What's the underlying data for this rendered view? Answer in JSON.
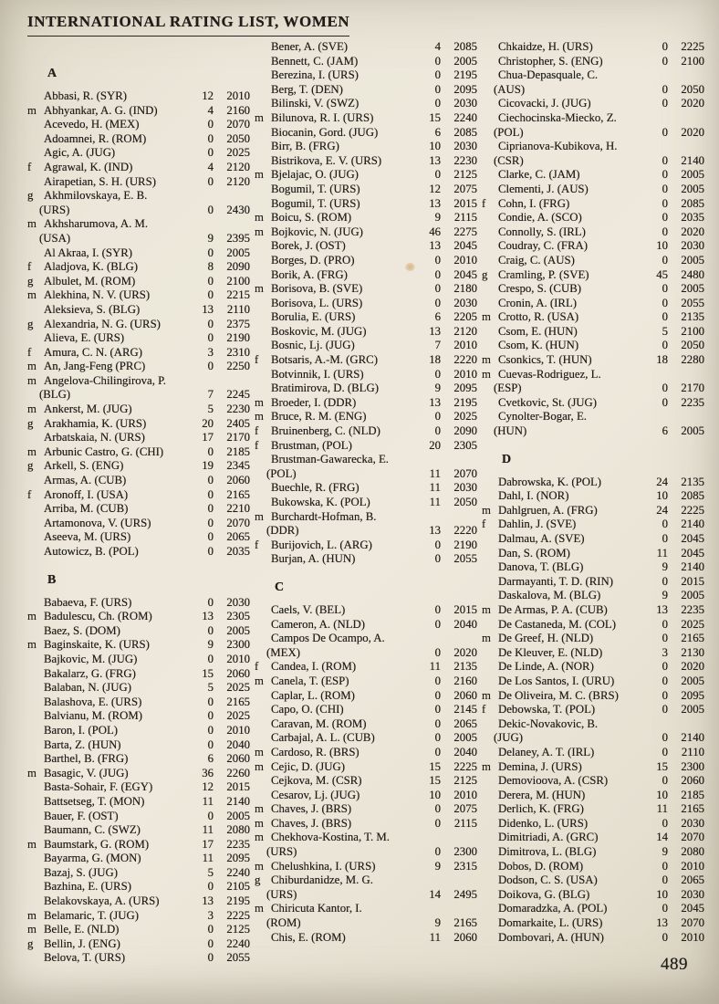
{
  "page": {
    "title": "INTERNATIONAL RATING LIST, WOMEN",
    "page_number": "489"
  },
  "columns": [
    [
      {
        "h": "A"
      },
      {
        "f": "",
        "n": "Abbasi, R. (SYR)",
        "g": "12",
        "r": "2010"
      },
      {
        "f": "m",
        "n": "Abhyankar, A. G. (IND)",
        "g": "4",
        "r": "2160"
      },
      {
        "f": "",
        "n": "Acevedo, H. (MEX)",
        "g": "0",
        "r": "2070"
      },
      {
        "f": "",
        "n": "Adoamnei, R. (ROM)",
        "g": "0",
        "r": "2050"
      },
      {
        "f": "",
        "n": "Agic, A. (JUG)",
        "g": "0",
        "r": "2025"
      },
      {
        "f": "f",
        "n": "Agrawal, K. (IND)",
        "g": "4",
        "r": "2120"
      },
      {
        "f": "",
        "n": "Airapetian, S. H. (URS)",
        "g": "0",
        "r": "2120"
      },
      {
        "f": "g",
        "n": "Akhmilovskaya, E. B.",
        "n2": "(URS)",
        "g": "0",
        "r": "2430"
      },
      {
        "f": "m",
        "n": "Akhsharumova, A. M.",
        "n2": "(USA)",
        "g": "9",
        "r": "2395"
      },
      {
        "f": "",
        "n": "Al Akraa, I. (SYR)",
        "g": "0",
        "r": "2005"
      },
      {
        "f": "f",
        "n": "Aladjova, K. (BLG)",
        "g": "8",
        "r": "2090"
      },
      {
        "f": "g",
        "n": "Albulet, M. (ROM)",
        "g": "0",
        "r": "2100"
      },
      {
        "f": "m",
        "n": "Alekhina, N. V. (URS)",
        "g": "0",
        "r": "2215"
      },
      {
        "f": "",
        "n": "Aleksieva, S. (BLG)",
        "g": "13",
        "r": "2110"
      },
      {
        "f": "g",
        "n": "Alexandria, N. G. (URS)",
        "g": "0",
        "r": "2375"
      },
      {
        "f": "",
        "n": "Alieva, E. (URS)",
        "g": "0",
        "r": "2190"
      },
      {
        "f": "f",
        "n": "Amura, C. N. (ARG)",
        "g": "3",
        "r": "2310"
      },
      {
        "f": "m",
        "n": "An, Jang-Feng (PRC)",
        "g": "0",
        "r": "2250"
      },
      {
        "f": "m",
        "n": "Angelova-Chilingirova, P.",
        "n2": "(BLG)",
        "g": "7",
        "r": "2245"
      },
      {
        "f": "m",
        "n": "Ankerst, M. (JUG)",
        "g": "5",
        "r": "2230"
      },
      {
        "f": "g",
        "n": "Arakhamia, K. (URS)",
        "g": "20",
        "r": "2405"
      },
      {
        "f": "",
        "n": "Arbatskaia, N. (URS)",
        "g": "17",
        "r": "2170"
      },
      {
        "f": "m",
        "n": "Arbunic Castro, G. (CHI)",
        "g": "0",
        "r": "2185"
      },
      {
        "f": "g",
        "n": "Arkell, S. (ENG)",
        "g": "19",
        "r": "2345"
      },
      {
        "f": "",
        "n": "Armas, A. (CUB)",
        "g": "0",
        "r": "2060"
      },
      {
        "f": "f",
        "n": "Aronoff, I. (USA)",
        "g": "0",
        "r": "2165"
      },
      {
        "f": "",
        "n": "Arriba, M. (CUB)",
        "g": "0",
        "r": "2210"
      },
      {
        "f": "",
        "n": "Artamonova, V. (URS)",
        "g": "0",
        "r": "2070"
      },
      {
        "f": "",
        "n": "Aseeva, M. (URS)",
        "g": "0",
        "r": "2065"
      },
      {
        "f": "",
        "n": "Autowicz, B. (POL)",
        "g": "0",
        "r": "2035"
      },
      {
        "h": "B"
      },
      {
        "f": "",
        "n": "Babaeva, F. (URS)",
        "g": "0",
        "r": "2030"
      },
      {
        "f": "m",
        "n": "Badulescu, Ch. (ROM)",
        "g": "13",
        "r": "2305"
      },
      {
        "f": "",
        "n": "Baez, S. (DOM)",
        "g": "0",
        "r": "2005"
      },
      {
        "f": "m",
        "n": "Baginskaite, K. (URS)",
        "g": "9",
        "r": "2300"
      },
      {
        "f": "",
        "n": "Bajkovic, M. (JUG)",
        "g": "0",
        "r": "2010"
      },
      {
        "f": "",
        "n": "Bakalarz, G. (FRG)",
        "g": "15",
        "r": "2060"
      },
      {
        "f": "",
        "n": "Balaban, N. (JUG)",
        "g": "5",
        "r": "2025"
      },
      {
        "f": "",
        "n": "Balashova, E. (URS)",
        "g": "0",
        "r": "2165"
      },
      {
        "f": "",
        "n": "Balvianu, M. (ROM)",
        "g": "0",
        "r": "2025"
      },
      {
        "f": "",
        "n": "Baron, I. (POL)",
        "g": "0",
        "r": "2010"
      },
      {
        "f": "",
        "n": "Barta, Z. (HUN)",
        "g": "0",
        "r": "2040"
      },
      {
        "f": "",
        "n": "Barthel, B. (FRG)",
        "g": "6",
        "r": "2060"
      },
      {
        "f": "m",
        "n": "Basagic, V. (JUG)",
        "g": "36",
        "r": "2260"
      },
      {
        "f": "",
        "n": "Basta-Sohair, F. (EGY)",
        "g": "12",
        "r": "2015"
      },
      {
        "f": "",
        "n": "Battsetseg, T. (MON)",
        "g": "11",
        "r": "2140"
      },
      {
        "f": "",
        "n": "Bauer, F. (OST)",
        "g": "0",
        "r": "2005"
      },
      {
        "f": "",
        "n": "Baumann, C. (SWZ)",
        "g": "11",
        "r": "2080"
      },
      {
        "f": "m",
        "n": "Baumstark, G. (ROM)",
        "g": "17",
        "r": "2235"
      },
      {
        "f": "",
        "n": "Bayarma, G. (MON)",
        "g": "11",
        "r": "2095"
      },
      {
        "f": "",
        "n": "Bazaj, S. (JUG)",
        "g": "5",
        "r": "2240"
      },
      {
        "f": "",
        "n": "Bazhina, E. (URS)",
        "g": "0",
        "r": "2105"
      },
      {
        "f": "",
        "n": "Belakovskaya, A. (URS)",
        "g": "13",
        "r": "2195"
      },
      {
        "f": "m",
        "n": "Belamaric, T. (JUG)",
        "g": "3",
        "r": "2225"
      },
      {
        "f": "m",
        "n": "Belle, E. (NLD)",
        "g": "0",
        "r": "2125"
      },
      {
        "f": "g",
        "n": "Bellin, J. (ENG)",
        "g": "0",
        "r": "2240"
      },
      {
        "f": "",
        "n": "Belova, T. (URS)",
        "g": "0",
        "r": "2055"
      }
    ],
    [
      {
        "f": "",
        "n": "Bener, A. (SVE)",
        "g": "4",
        "r": "2085"
      },
      {
        "f": "",
        "n": "Bennett, C. (JAM)",
        "g": "0",
        "r": "2005"
      },
      {
        "f": "",
        "n": "Berezina, I. (URS)",
        "g": "0",
        "r": "2195"
      },
      {
        "f": "",
        "n": "Berg, T. (DEN)",
        "g": "0",
        "r": "2095"
      },
      {
        "f": "",
        "n": "Bilinski, V. (SWZ)",
        "g": "0",
        "r": "2030"
      },
      {
        "f": "m",
        "n": "Bilunova, R. I. (URS)",
        "g": "15",
        "r": "2240"
      },
      {
        "f": "",
        "n": "Biocanin, Gord. (JUG)",
        "g": "6",
        "r": "2085"
      },
      {
        "f": "",
        "n": "Birr, B. (FRG)",
        "g": "10",
        "r": "2030"
      },
      {
        "f": "",
        "n": "Bistrikova, E. V. (URS)",
        "g": "13",
        "r": "2230"
      },
      {
        "f": "m",
        "n": "Bjelajac, O. (JUG)",
        "g": "0",
        "r": "2125"
      },
      {
        "f": "",
        "n": "Bogumil, T. (URS)",
        "g": "12",
        "r": "2075"
      },
      {
        "f": "",
        "n": "Bogumil, T. (URS)",
        "g": "13",
        "r": "2015"
      },
      {
        "f": "m",
        "n": "Boicu, S. (ROM)",
        "g": "9",
        "r": "2115"
      },
      {
        "f": "m",
        "n": "Bojkovic, N. (JUG)",
        "g": "46",
        "r": "2275"
      },
      {
        "f": "",
        "n": "Borek, J. (OST)",
        "g": "13",
        "r": "2045"
      },
      {
        "f": "",
        "n": "Borges, D. (PRO)",
        "g": "0",
        "r": "2010"
      },
      {
        "f": "",
        "n": "Borik, A. (FRG)",
        "g": "0",
        "r": "2045"
      },
      {
        "f": "m",
        "n": "Borisova, B. (SVE)",
        "g": "0",
        "r": "2180"
      },
      {
        "f": "",
        "n": "Borisova, L. (URS)",
        "g": "0",
        "r": "2030"
      },
      {
        "f": "",
        "n": "Borulia, E. (URS)",
        "g": "6",
        "r": "2205"
      },
      {
        "f": "",
        "n": "Boskovic, M. (JUG)",
        "g": "13",
        "r": "2120"
      },
      {
        "f": "",
        "n": "Bosnic, Lj. (JUG)",
        "g": "7",
        "r": "2010"
      },
      {
        "f": "f",
        "n": "Botsaris, A.-M. (GRC)",
        "g": "18",
        "r": "2220"
      },
      {
        "f": "",
        "n": "Botvinnik, I. (URS)",
        "g": "0",
        "r": "2010"
      },
      {
        "f": "",
        "n": "Bratimirova, D. (BLG)",
        "g": "9",
        "r": "2095"
      },
      {
        "f": "m",
        "n": "Broeder, I. (DDR)",
        "g": "13",
        "r": "2195"
      },
      {
        "f": "m",
        "n": "Bruce, R. M. (ENG)",
        "g": "0",
        "r": "2025"
      },
      {
        "f": "f",
        "n": "Bruinenberg, C. (NLD)",
        "g": "0",
        "r": "2090"
      },
      {
        "f": "f",
        "n": "Brustman, (POL)",
        "g": "20",
        "r": "2305"
      },
      {
        "f": "",
        "n": "Brustman-Gawarecka, E.",
        "n2": "(POL)",
        "g": "11",
        "r": "2070"
      },
      {
        "f": "",
        "n": "Buechle, R. (FRG)",
        "g": "11",
        "r": "2030"
      },
      {
        "f": "",
        "n": "Bukowska, K. (POL)",
        "g": "11",
        "r": "2050"
      },
      {
        "f": "m",
        "n": "Burchardt-Hofman, B.",
        "n2": "(DDR)",
        "g": "13",
        "r": "2220"
      },
      {
        "f": "f",
        "n": "Burijovich, L. (ARG)",
        "g": "0",
        "r": "2190"
      },
      {
        "f": "",
        "n": "Burjan, A. (HUN)",
        "g": "0",
        "r": "2055"
      },
      {
        "h": "C"
      },
      {
        "f": "",
        "n": "Caels, V. (BEL)",
        "g": "0",
        "r": "2015"
      },
      {
        "f": "",
        "n": "Cameron, A. (NLD)",
        "g": "0",
        "r": "2040"
      },
      {
        "f": "",
        "n": "Campos De Ocampo, A.",
        "n2": "(MEX)",
        "g": "0",
        "r": "2020"
      },
      {
        "f": "f",
        "n": "Candea, I. (ROM)",
        "g": "11",
        "r": "2135"
      },
      {
        "f": "m",
        "n": "Canela, T. (ESP)",
        "g": "0",
        "r": "2160"
      },
      {
        "f": "",
        "n": "Caplar, L. (ROM)",
        "g": "0",
        "r": "2060"
      },
      {
        "f": "",
        "n": "Capo, O. (CHI)",
        "g": "0",
        "r": "2145"
      },
      {
        "f": "",
        "n": "Caravan, M. (ROM)",
        "g": "0",
        "r": "2065"
      },
      {
        "f": "",
        "n": "Carbajal, A. L. (CUB)",
        "g": "0",
        "r": "2005"
      },
      {
        "f": "m",
        "n": "Cardoso, R. (BRS)",
        "g": "0",
        "r": "2040"
      },
      {
        "f": "m",
        "n": "Cejic, D. (JUG)",
        "g": "15",
        "r": "2225"
      },
      {
        "f": "",
        "n": "Cejkova, M. (CSR)",
        "g": "15",
        "r": "2125"
      },
      {
        "f": "",
        "n": "Cesarov, Lj. (JUG)",
        "g": "10",
        "r": "2010"
      },
      {
        "f": "m",
        "n": "Chaves, J. (BRS)",
        "g": "0",
        "r": "2075"
      },
      {
        "f": "m",
        "n": "Chaves, J. (BRS)",
        "g": "0",
        "r": "2115"
      },
      {
        "f": "m",
        "n": "Chekhova-Kostina, T. M.",
        "n2": "(URS)",
        "g": "0",
        "r": "2300"
      },
      {
        "f": "m",
        "n": "Chelushkina, I. (URS)",
        "g": "9",
        "r": "2315"
      },
      {
        "f": "g",
        "n": "Chiburdanidze, M. G.",
        "n2": "(URS)",
        "g": "14",
        "r": "2495"
      },
      {
        "f": "m",
        "n": "Chiricuta Kantor, I.",
        "n2": "(ROM)",
        "g": "9",
        "r": "2165"
      },
      {
        "f": "",
        "n": "Chis, E. (ROM)",
        "g": "11",
        "r": "2060"
      }
    ],
    [
      {
        "f": "",
        "n": "Chkaidze, H. (URS)",
        "g": "0",
        "r": "2225"
      },
      {
        "f": "",
        "n": "Christopher, S. (ENG)",
        "g": "0",
        "r": "2100"
      },
      {
        "f": "",
        "n": "Chua-Depasquale, C.",
        "n2": "(AUS)",
        "g": "0",
        "r": "2050"
      },
      {
        "f": "",
        "n": "Cicovacki, J. (JUG)",
        "g": "0",
        "r": "2020"
      },
      {
        "f": "",
        "n": "Ciechocinska-Miecko, Z.",
        "n2": "(POL)",
        "g": "0",
        "r": "2020"
      },
      {
        "f": "",
        "n": "Ciprianova-Kubikova, H.",
        "n2": "(CSR)",
        "g": "0",
        "r": "2140"
      },
      {
        "f": "",
        "n": "Clarke, C. (JAM)",
        "g": "0",
        "r": "2005"
      },
      {
        "f": "",
        "n": "Clementi, J. (AUS)",
        "g": "0",
        "r": "2005"
      },
      {
        "f": "f",
        "n": "Cohn, I. (FRG)",
        "g": "0",
        "r": "2085"
      },
      {
        "f": "",
        "n": "Condie, A. (SCO)",
        "g": "0",
        "r": "2035"
      },
      {
        "f": "",
        "n": "Connolly, S. (IRL)",
        "g": "0",
        "r": "2020"
      },
      {
        "f": "",
        "n": "Coudray, C. (FRA)",
        "g": "10",
        "r": "2030"
      },
      {
        "f": "",
        "n": "Craig, C. (AUS)",
        "g": "0",
        "r": "2005"
      },
      {
        "f": "g",
        "n": "Cramling, P. (SVE)",
        "g": "45",
        "r": "2480"
      },
      {
        "f": "",
        "n": "Crespo, S. (CUB)",
        "g": "0",
        "r": "2005"
      },
      {
        "f": "",
        "n": "Cronin, A. (IRL)",
        "g": "0",
        "r": "2055"
      },
      {
        "f": "m",
        "n": "Crotto, R. (USA)",
        "g": "0",
        "r": "2135"
      },
      {
        "f": "",
        "n": "Csom, E. (HUN)",
        "g": "5",
        "r": "2100"
      },
      {
        "f": "",
        "n": "Csom, K. (HUN)",
        "g": "0",
        "r": "2050"
      },
      {
        "f": "m",
        "n": "Csonkics, T. (HUN)",
        "g": "18",
        "r": "2280"
      },
      {
        "f": "m",
        "n": "Cuevas-Rodriguez, L.",
        "n2": "(ESP)",
        "g": "0",
        "r": "2170"
      },
      {
        "f": "",
        "n": "Cvetkovic, St. (JUG)",
        "g": "0",
        "r": "2235"
      },
      {
        "f": "",
        "n": "Cynolter-Bogar, E.",
        "n2": "(HUN)",
        "g": "6",
        "r": "2005"
      },
      {
        "h": "D"
      },
      {
        "f": "",
        "n": "Dabrowska, K. (POL)",
        "g": "24",
        "r": "2135"
      },
      {
        "f": "",
        "n": "Dahl, I. (NOR)",
        "g": "10",
        "r": "2085"
      },
      {
        "f": "m",
        "n": "Dahlgruen, A. (FRG)",
        "g": "24",
        "r": "2225"
      },
      {
        "f": "f",
        "n": "Dahlin, J. (SVE)",
        "g": "0",
        "r": "2140"
      },
      {
        "f": "",
        "n": "Dalmau, A. (SVE)",
        "g": "0",
        "r": "2045"
      },
      {
        "f": "",
        "n": "Dan, S. (ROM)",
        "g": "11",
        "r": "2045"
      },
      {
        "f": "",
        "n": "Danova, T. (BLG)",
        "g": "9",
        "r": "2140"
      },
      {
        "f": "",
        "n": "Darmayanti, T. D. (RIN)",
        "g": "0",
        "r": "2015"
      },
      {
        "f": "",
        "n": "Daskalova, M. (BLG)",
        "g": "9",
        "r": "2005"
      },
      {
        "f": "m",
        "n": "De Armas, P. A. (CUB)",
        "g": "13",
        "r": "2235"
      },
      {
        "f": "",
        "n": "De Castaneda, M. (COL)",
        "g": "0",
        "r": "2025"
      },
      {
        "f": "m",
        "n": "De Greef, H. (NLD)",
        "g": "0",
        "r": "2165"
      },
      {
        "f": "",
        "n": "De Kleuver, E. (NLD)",
        "g": "3",
        "r": "2130"
      },
      {
        "f": "",
        "n": "De Linde, A. (NOR)",
        "g": "0",
        "r": "2020"
      },
      {
        "f": "",
        "n": "De Los Santos, I. (URU)",
        "g": "0",
        "r": "2005"
      },
      {
        "f": "m",
        "n": "De Oliveira, M. C. (BRS)",
        "g": "0",
        "r": "2095"
      },
      {
        "f": "f",
        "n": "Debowska, T. (POL)",
        "g": "0",
        "r": "2005"
      },
      {
        "f": "",
        "n": "Dekic-Novakovic, B.",
        "n2": "(JUG)",
        "g": "0",
        "r": "2140"
      },
      {
        "f": "",
        "n": "Delaney, A. T. (IRL)",
        "g": "0",
        "r": "2110"
      },
      {
        "f": "m",
        "n": "Demina, J. (URS)",
        "g": "15",
        "r": "2300"
      },
      {
        "f": "",
        "n": "Demovioova, A. (CSR)",
        "g": "0",
        "r": "2060"
      },
      {
        "f": "",
        "n": "Derera, M. (HUN)",
        "g": "10",
        "r": "2185"
      },
      {
        "f": "",
        "n": "Derlich, K. (FRG)",
        "g": "11",
        "r": "2165"
      },
      {
        "f": "",
        "n": "Didenko, L. (URS)",
        "g": "0",
        "r": "2030"
      },
      {
        "f": "",
        "n": "Dimitriadi, A. (GRC)",
        "g": "14",
        "r": "2070"
      },
      {
        "f": "",
        "n": "Dimitrova, L. (BLG)",
        "g": "9",
        "r": "2080"
      },
      {
        "f": "",
        "n": "Dobos, D. (ROM)",
        "g": "0",
        "r": "2010"
      },
      {
        "f": "",
        "n": "Dodson, C. S. (USA)",
        "g": "0",
        "r": "2065"
      },
      {
        "f": "",
        "n": "Doikova, G. (BLG)",
        "g": "10",
        "r": "2030"
      },
      {
        "f": "",
        "n": "Domaradzka, A. (POL)",
        "g": "0",
        "r": "2045"
      },
      {
        "f": "",
        "n": "Domarkaite, L. (URS)",
        "g": "13",
        "r": "2070"
      },
      {
        "f": "",
        "n": "Dombovari, A. (HUN)",
        "g": "0",
        "r": "2010"
      }
    ]
  ]
}
